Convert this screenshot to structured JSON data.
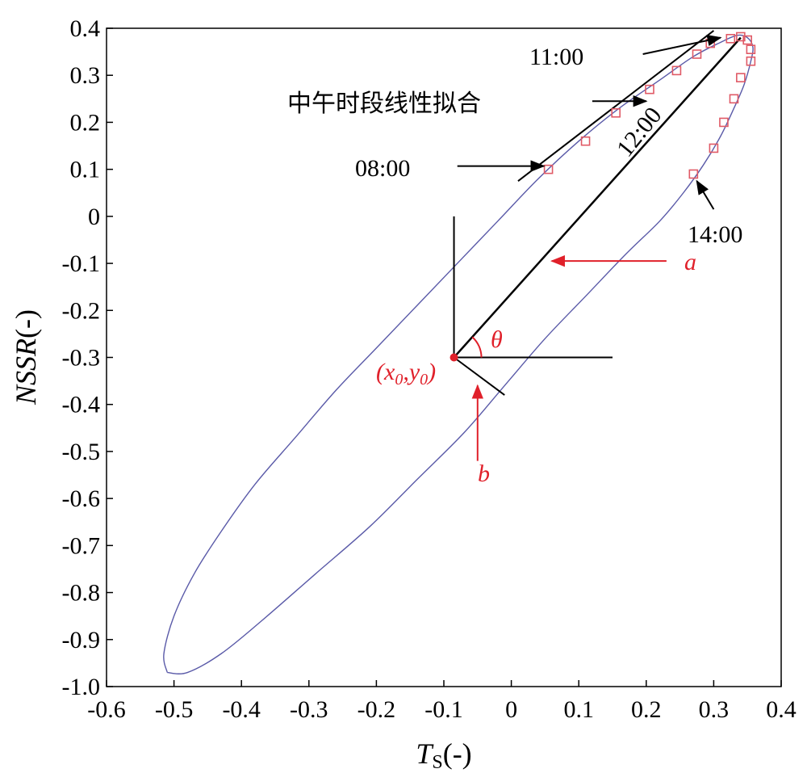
{
  "chart_data": {
    "type": "scatter",
    "xlabel": {
      "main": "T",
      "sub": "S",
      "suffix": "(-)"
    },
    "ylabel": {
      "main": "NSSR",
      "suffix": "(-)"
    },
    "xlim": [
      -0.6,
      0.4
    ],
    "ylim": [
      -1.0,
      0.4
    ],
    "x_ticks": [
      -0.6,
      -0.5,
      -0.4,
      -0.3,
      -0.2,
      -0.1,
      0,
      0.1,
      0.2,
      0.3,
      0.4
    ],
    "x_tick_labels": [
      "-0.6",
      "-0.5",
      "-0.4",
      "-0.3",
      "-0.2",
      "-0.1",
      "0",
      "0.1",
      "0.2",
      "0.3",
      "0.4"
    ],
    "y_ticks": [
      0.4,
      0.3,
      0.2,
      0.1,
      0,
      -0.1,
      -0.2,
      -0.3,
      -0.4,
      -0.5,
      -0.6,
      -0.7,
      -0.8,
      -0.9,
      -1.0
    ],
    "y_tick_labels": [
      "0.4",
      "0.3",
      "0.2",
      "0.1",
      "0",
      "-0.1",
      "-0.2",
      "-0.3",
      "-0.4",
      "-0.5",
      "-0.6",
      "-0.7",
      "-0.8",
      "-0.9",
      "-1.0"
    ],
    "grid": false,
    "ellipse": {
      "color": "#5a5aa8",
      "points": [
        [
          -0.51,
          -0.97
        ],
        [
          -0.515,
          -0.93
        ],
        [
          -0.5,
          -0.85
        ],
        [
          -0.47,
          -0.76
        ],
        [
          -0.43,
          -0.67
        ],
        [
          -0.38,
          -0.57
        ],
        [
          -0.32,
          -0.47
        ],
        [
          -0.26,
          -0.37
        ],
        [
          -0.2,
          -0.28
        ],
        [
          -0.14,
          -0.19
        ],
        [
          -0.08,
          -0.1
        ],
        [
          -0.02,
          -0.01
        ],
        [
          0.04,
          0.08
        ],
        [
          0.1,
          0.16
        ],
        [
          0.16,
          0.23
        ],
        [
          0.22,
          0.29
        ],
        [
          0.27,
          0.34
        ],
        [
          0.31,
          0.37
        ],
        [
          0.335,
          0.385
        ],
        [
          0.35,
          0.38
        ],
        [
          0.358,
          0.36
        ],
        [
          0.355,
          0.33
        ],
        [
          0.345,
          0.28
        ],
        [
          0.33,
          0.23
        ],
        [
          0.31,
          0.17
        ],
        [
          0.285,
          0.11
        ],
        [
          0.255,
          0.05
        ],
        [
          0.22,
          -0.01
        ],
        [
          0.17,
          -0.08
        ],
        [
          0.11,
          -0.17
        ],
        [
          0.05,
          -0.26
        ],
        [
          -0.01,
          -0.36
        ],
        [
          -0.07,
          -0.46
        ],
        [
          -0.14,
          -0.56
        ],
        [
          -0.21,
          -0.66
        ],
        [
          -0.29,
          -0.76
        ],
        [
          -0.37,
          -0.86
        ],
        [
          -0.43,
          -0.93
        ],
        [
          -0.48,
          -0.97
        ],
        [
          -0.51,
          -0.97
        ]
      ]
    },
    "series": [
      {
        "marker": "square",
        "color": "#e05a66",
        "points": [
          [
            0.055,
            0.1
          ],
          [
            0.11,
            0.16
          ],
          [
            0.155,
            0.22
          ],
          [
            0.205,
            0.27
          ],
          [
            0.245,
            0.31
          ],
          [
            0.275,
            0.345
          ],
          [
            0.295,
            0.368
          ],
          [
            0.325,
            0.378
          ],
          [
            0.34,
            0.382
          ],
          [
            0.35,
            0.375
          ],
          [
            0.355,
            0.355
          ],
          [
            0.355,
            0.33
          ],
          [
            0.34,
            0.295
          ],
          [
            0.33,
            0.25
          ],
          [
            0.315,
            0.2
          ],
          [
            0.3,
            0.145
          ],
          [
            0.27,
            0.09
          ]
        ]
      }
    ],
    "fit_line": {
      "x": [
        0.01,
        0.3
      ],
      "y": [
        0.075,
        0.395
      ]
    },
    "major_axis": {
      "x": [
        -0.085,
        0.34
      ],
      "y": [
        -0.3,
        0.38
      ]
    },
    "minor_axis": {
      "x": [
        -0.085,
        -0.01
      ],
      "y": [
        -0.3,
        -0.38
      ]
    },
    "ref_vertical": {
      "x": [
        -0.085,
        -0.085
      ],
      "y": [
        -0.3,
        0.0
      ]
    },
    "ref_horizontal": {
      "x": [
        -0.085,
        0.15
      ],
      "y": [
        -0.3,
        -0.3
      ]
    },
    "center": {
      "x": -0.085,
      "y": -0.3,
      "label_main": "(x",
      "label_sub": "0",
      "label_mid": ",y",
      "label_end": ")"
    },
    "annotations": {
      "t1100": {
        "text": "11:00",
        "arrow_from": [
          0.195,
          0.345
        ],
        "arrow_to": [
          0.31,
          0.38
        ]
      },
      "noon_fit": {
        "text": "中午时段线性拟合",
        "arrow_from": [
          0.12,
          0.245
        ],
        "arrow_to": [
          0.2,
          0.245
        ]
      },
      "t1200": {
        "text": "12:00"
      },
      "t0800": {
        "text": "08:00",
        "arrow_from": [
          -0.08,
          0.107
        ],
        "arrow_to": [
          0.048,
          0.107
        ]
      },
      "t1400": {
        "text": "14:00",
        "arrow_from": [
          0.3,
          0.015
        ],
        "arrow_to": [
          0.275,
          0.075
        ]
      },
      "a": {
        "text": "a",
        "arrow_from": [
          0.23,
          -0.095
        ],
        "arrow_to": [
          0.06,
          -0.095
        ]
      },
      "theta": {
        "text": "θ"
      },
      "b": {
        "text": "b",
        "arrow_from": [
          -0.05,
          -0.52
        ],
        "arrow_to": [
          -0.05,
          -0.36
        ]
      }
    }
  }
}
